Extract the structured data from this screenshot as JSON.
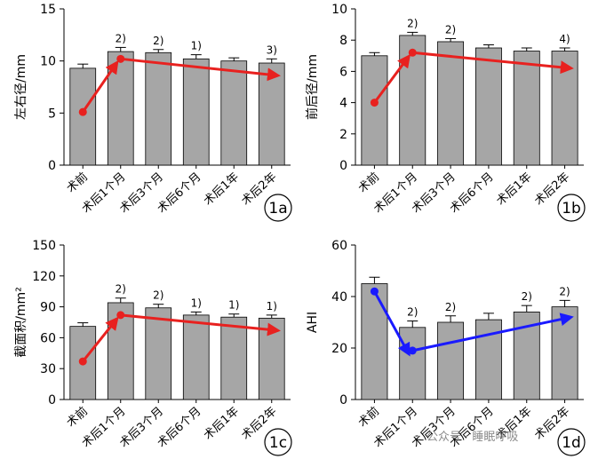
{
  "charts": [
    {
      "badge": "1a",
      "type": "bar",
      "categories": [
        "术前",
        "术后1个月",
        "术后3个月",
        "术后6个月",
        "术后1年",
        "术后2年"
      ],
      "values": [
        9.3,
        10.9,
        10.8,
        10.2,
        10.0,
        9.8
      ],
      "errors": [
        0.4,
        0.4,
        0.3,
        0.4,
        0.3,
        0.4
      ],
      "significance": [
        "",
        "2)",
        "2)",
        "1)",
        "",
        "3)"
      ],
      "ylabel": "左右径/mm",
      "ylim": [
        0,
        15
      ],
      "yticks": [
        0,
        5,
        10,
        15
      ],
      "arrow_color": "#e8211f",
      "trend_points": [
        5.1,
        10.2,
        8.6
      ]
    },
    {
      "badge": "1b",
      "type": "bar",
      "categories": [
        "术前",
        "术后1个月",
        "术后3个月",
        "术后6个月",
        "术后1年",
        "术后2年"
      ],
      "values": [
        7.0,
        8.3,
        7.9,
        7.5,
        7.3,
        7.3
      ],
      "errors": [
        0.2,
        0.2,
        0.2,
        0.2,
        0.2,
        0.2
      ],
      "significance": [
        "",
        "2)",
        "2)",
        "",
        "",
        "4)"
      ],
      "ylabel": "前后径/mm",
      "ylim": [
        0,
        10
      ],
      "yticks": [
        0,
        2,
        4,
        6,
        8,
        10
      ],
      "arrow_color": "#e8211f",
      "trend_points": [
        4.0,
        7.2,
        6.2
      ]
    },
    {
      "badge": "1c",
      "type": "bar",
      "categories": [
        "术前",
        "术后1个月",
        "术后3个月",
        "术后6个月",
        "术后1年",
        "术后2年"
      ],
      "values": [
        71,
        94,
        89,
        82,
        80,
        79
      ],
      "errors": [
        3.5,
        4.5,
        3.5,
        3,
        3,
        3
      ],
      "significance": [
        "",
        "2)",
        "2)",
        "1)",
        "1)",
        "1)"
      ],
      "ylabel": "截面积/mm²",
      "ylim": [
        0,
        150
      ],
      "yticks": [
        0,
        30,
        60,
        90,
        120,
        150
      ],
      "arrow_color": "#e8211f",
      "trend_points": [
        37,
        82,
        67
      ]
    },
    {
      "badge": "1d",
      "type": "bar",
      "categories": [
        "术前",
        "术后1个月",
        "术后3个月",
        "术后6个月",
        "术后1年",
        "术后2年"
      ],
      "values": [
        45,
        28,
        30,
        31,
        34,
        36
      ],
      "errors": [
        2.5,
        2.5,
        2.5,
        2.5,
        2.5,
        2.5
      ],
      "significance": [
        "",
        "2)",
        "2)",
        "",
        "2)",
        "2)"
      ],
      "ylabel": "AHI",
      "ylim": [
        0,
        60
      ],
      "yticks": [
        0,
        20,
        40,
        60
      ],
      "arrow_color": "#1a1aff",
      "trend_points": [
        42,
        19,
        32
      ]
    }
  ],
  "watermark": "公众号 · 睡眠呼吸"
}
